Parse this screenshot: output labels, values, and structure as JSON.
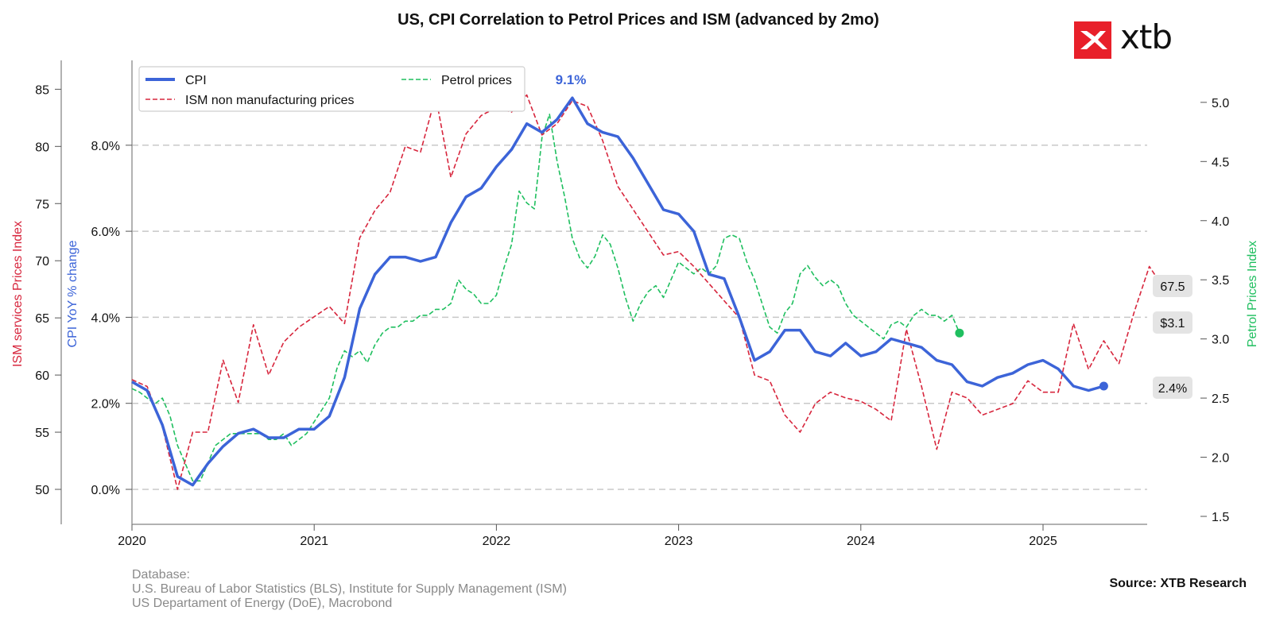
{
  "branding": {
    "logo_text": "xtb"
  },
  "footer": {
    "label": "Database:",
    "line1": "U.S. Bureau of Labor Statistics (BLS), Institute for Supply Management (ISM)",
    "line2": "US Departament of Energy (DoE), Macrobond",
    "source": "Source: XTB Research"
  },
  "colors": {
    "cpi": "#3c64d8",
    "ism": "#d7263d",
    "petrol": "#1fbf5f"
  },
  "chart_data": {
    "type": "line",
    "title": "US, CPI Correlation to Petrol Prices and ISM (advanced by 2mo)",
    "x_ticks": [
      "2020",
      "2021",
      "2022",
      "2023",
      "2024",
      "2025"
    ],
    "axes": {
      "cpi": {
        "label": "CPI YoY % change",
        "ticks": [
          "0.0%",
          "2.0%",
          "4.0%",
          "6.0%",
          "8.0%"
        ],
        "range": [
          -0.8,
          10.0
        ]
      },
      "ism": {
        "label": "ISM services Prices Index",
        "ticks": [
          "50",
          "55",
          "60",
          "65",
          "70",
          "75",
          "80",
          "85"
        ],
        "range": [
          47,
          88
        ]
      },
      "petrol": {
        "label": "Petrol Prices Index",
        "ticks": [
          "1.5",
          "2.0",
          "2.5",
          "3.0",
          "3.5",
          "4.0",
          "4.5",
          "5.0"
        ],
        "range": [
          1.5,
          5.5
        ]
      }
    },
    "grid": "horizontal dashed at CPI ticks",
    "legend": {
      "placement": "top-left",
      "entries": [
        "CPI",
        "ISM non manufacturing prices",
        "Petrol prices"
      ]
    },
    "annotations": {
      "peak": "9.1%",
      "end_ism": "67.5",
      "end_petrol": "$3.1",
      "end_cpi": "2.4%"
    },
    "series": [
      {
        "name": "CPI",
        "axis": "cpi",
        "x_start": "2020-01",
        "step": "month",
        "values": [
          2.5,
          2.3,
          1.5,
          0.3,
          0.1,
          0.6,
          1.0,
          1.3,
          1.4,
          1.2,
          1.2,
          1.4,
          1.4,
          1.7,
          2.6,
          4.2,
          5.0,
          5.4,
          5.4,
          5.3,
          5.4,
          6.2,
          6.8,
          7.0,
          7.5,
          7.9,
          8.5,
          8.3,
          8.6,
          9.1,
          8.5,
          8.3,
          8.2,
          7.7,
          7.1,
          6.5,
          6.4,
          6.0,
          5.0,
          4.9,
          4.0,
          3.0,
          3.2,
          3.7,
          3.7,
          3.2,
          3.1,
          3.4,
          3.1,
          3.2,
          3.5,
          3.4,
          3.3,
          3.0,
          2.9,
          2.5,
          2.4,
          2.6,
          2.7,
          2.9,
          3.0,
          2.8,
          2.4,
          2.3,
          2.4
        ]
      },
      {
        "name": "ISM non manufacturing prices",
        "axis": "ism",
        "x_start": "2020-01",
        "step": "month",
        "values": [
          59.6,
          59.0,
          55.5,
          50.0,
          55.0,
          55.0,
          61.3,
          57.6,
          64.4,
          60.0,
          62.9,
          64.2,
          65.1,
          66.0,
          64.5,
          72.0,
          74.4,
          76.0,
          80.0,
          79.5,
          84.4,
          77.3,
          81.1,
          82.7,
          83.4,
          83.0,
          84.5,
          81.0,
          82.0,
          84.0,
          83.5,
          80.5,
          76.5,
          74.5,
          72.5,
          70.5,
          70.8,
          69.5,
          68.0,
          66.5,
          65.0,
          60.0,
          59.5,
          56.5,
          55.0,
          57.5,
          58.5,
          58.0,
          57.7,
          57.0,
          56.0,
          64.0,
          59.0,
          53.5,
          58.5,
          58.0,
          56.5,
          57.0,
          57.5,
          59.5,
          58.5,
          58.5,
          64.5,
          60.5,
          63.0,
          61.0,
          65.5,
          69.5,
          67.5
        ]
      },
      {
        "name": "Petrol prices",
        "axis": "petrol",
        "x_start": "2020-01",
        "step": "month",
        "points_per_step": 2,
        "values": [
          2.58,
          2.55,
          2.5,
          2.45,
          2.5,
          2.35,
          2.1,
          1.95,
          1.8,
          1.8,
          1.95,
          2.1,
          2.15,
          2.2,
          2.2,
          2.2,
          2.2,
          2.2,
          2.15,
          2.15,
          2.2,
          2.1,
          2.15,
          2.2,
          2.3,
          2.4,
          2.5,
          2.75,
          2.9,
          2.85,
          2.9,
          2.8,
          2.95,
          3.05,
          3.1,
          3.1,
          3.15,
          3.15,
          3.2,
          3.2,
          3.25,
          3.25,
          3.3,
          3.5,
          3.42,
          3.38,
          3.3,
          3.3,
          3.37,
          3.6,
          3.8,
          4.25,
          4.15,
          4.1,
          4.7,
          4.9,
          4.5,
          4.2,
          3.85,
          3.68,
          3.6,
          3.7,
          3.88,
          3.8,
          3.6,
          3.35,
          3.15,
          3.3,
          3.4,
          3.45,
          3.35,
          3.5,
          3.65,
          3.6,
          3.55,
          3.6,
          3.55,
          3.62,
          3.85,
          3.88,
          3.85,
          3.65,
          3.5,
          3.3,
          3.1,
          3.05,
          3.22,
          3.3,
          3.55,
          3.62,
          3.52,
          3.45,
          3.5,
          3.45,
          3.3,
          3.2,
          3.15,
          3.1,
          3.05,
          3.0,
          3.12,
          3.15,
          3.1,
          3.2,
          3.25,
          3.2,
          3.2,
          3.15,
          3.2,
          3.05
        ]
      }
    ]
  }
}
